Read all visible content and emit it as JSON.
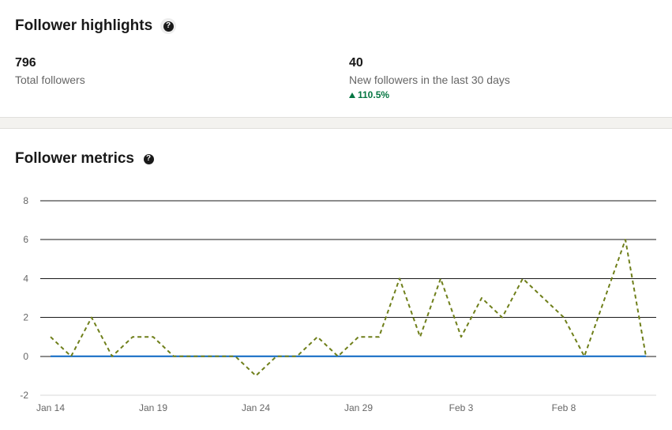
{
  "highlights": {
    "title": "Follower highlights",
    "total": {
      "value": "796",
      "label": "Total followers"
    },
    "new": {
      "value": "40",
      "label": "New followers in the last 30 days",
      "change": "110.5%"
    }
  },
  "metrics": {
    "title": "Follower metrics"
  },
  "colors": {
    "accent": "#057642",
    "series_dashed": "#6f7f1a",
    "series_baseline": "#0a66c2"
  },
  "chart_data": {
    "type": "line",
    "x": [
      "Jan 14",
      "Jan 15",
      "Jan 16",
      "Jan 17",
      "Jan 18",
      "Jan 19",
      "Jan 20",
      "Jan 21",
      "Jan 22",
      "Jan 23",
      "Jan 24",
      "Jan 25",
      "Jan 26",
      "Jan 27",
      "Jan 28",
      "Jan 29",
      "Jan 30",
      "Jan 31",
      "Feb 1",
      "Feb 2",
      "Feb 3",
      "Feb 4",
      "Feb 5",
      "Feb 6",
      "Feb 7",
      "Feb 8",
      "Feb 9",
      "Feb 10",
      "Feb 11",
      "Feb 12"
    ],
    "x_tick_labels": [
      "Jan 14",
      "Jan 19",
      "Jan 24",
      "Jan 29",
      "Feb 3",
      "Feb 8"
    ],
    "x_tick_indices": [
      0,
      5,
      10,
      15,
      20,
      25
    ],
    "y_ticks": [
      8,
      6,
      4,
      2,
      0,
      -2
    ],
    "ylim": [
      -2,
      8
    ],
    "grid": true,
    "series": [
      {
        "values": [
          1,
          0,
          2,
          0,
          1,
          1,
          0,
          0,
          0,
          0,
          -1,
          0,
          0,
          1,
          0,
          1,
          1,
          4,
          1,
          4,
          1,
          3,
          2,
          4,
          3,
          2,
          0,
          3,
          6,
          0
        ],
        "style": "dashed"
      },
      {
        "values": [
          0,
          0,
          0,
          0,
          0,
          0,
          0,
          0,
          0,
          0,
          0,
          0,
          0,
          0,
          0,
          0,
          0,
          0,
          0,
          0,
          0,
          0,
          0,
          0,
          0,
          0,
          0,
          0,
          0,
          0
        ],
        "style": "solid"
      }
    ]
  }
}
